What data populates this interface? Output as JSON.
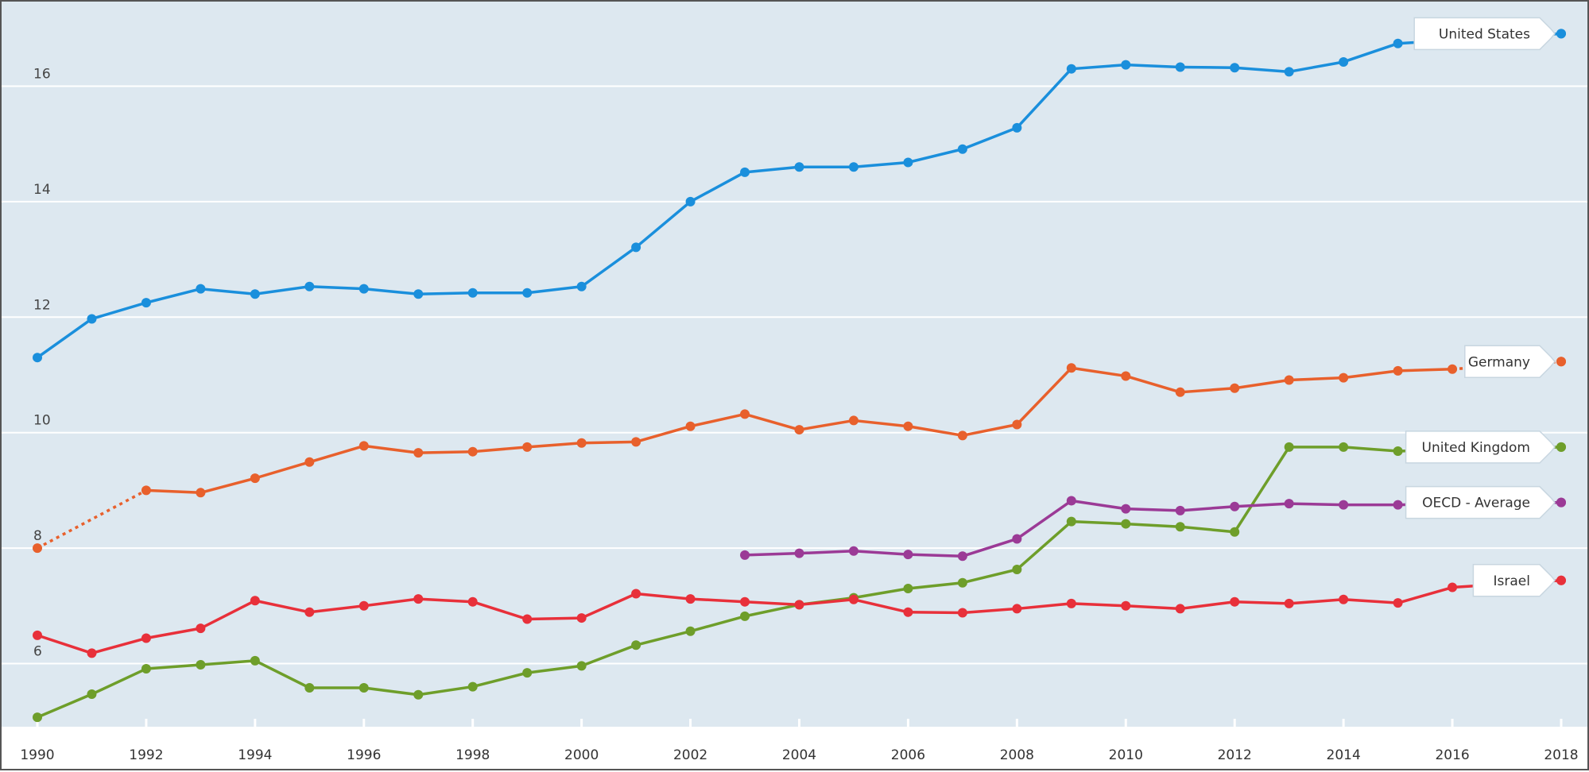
{
  "chart_data": {
    "type": "line",
    "title": "",
    "xlabel": "",
    "ylabel": "",
    "x": [
      1990,
      1991,
      1992,
      1993,
      1994,
      1995,
      1996,
      1997,
      1998,
      1999,
      2000,
      2001,
      2002,
      2003,
      2004,
      2005,
      2006,
      2007,
      2008,
      2009,
      2010,
      2011,
      2012,
      2013,
      2014,
      2015,
      2016,
      2017,
      2018
    ],
    "xticks": [
      "1990",
      "1992",
      "1994",
      "1996",
      "1998",
      "2000",
      "2002",
      "2004",
      "2006",
      "2008",
      "2010",
      "2012",
      "2014",
      "2016",
      "2018"
    ],
    "yticks": [
      "6",
      "8",
      "10",
      "12",
      "14",
      "16"
    ],
    "ylim": [
      4.9,
      17.3
    ],
    "xlim": [
      1990,
      2018
    ],
    "grid": "horizontal",
    "background": "#dde8f0",
    "legend": "labels at line ends (right)",
    "series": [
      {
        "name": "United States",
        "color": "#1a8fdc",
        "values": [
          11.3,
          11.97,
          12.25,
          12.49,
          12.4,
          12.53,
          12.49,
          12.4,
          12.42,
          12.42,
          12.53,
          13.21,
          14.0,
          14.51,
          14.6,
          14.6,
          14.68,
          14.91,
          15.28,
          16.3,
          16.37,
          16.33,
          16.32,
          16.25,
          16.42,
          16.74,
          null,
          null,
          16.91
        ]
      },
      {
        "name": "Germany",
        "color": "#e8602c",
        "dotted_gaps": true,
        "values": [
          8.0,
          null,
          9.0,
          8.96,
          9.21,
          9.49,
          9.77,
          9.65,
          9.67,
          9.75,
          9.82,
          9.84,
          10.11,
          10.32,
          10.05,
          10.21,
          10.11,
          9.95,
          10.14,
          11.12,
          10.98,
          10.7,
          10.77,
          10.91,
          10.95,
          11.07,
          11.1,
          null,
          11.23
        ]
      },
      {
        "name": "United Kingdom",
        "color": "#6e9e2a",
        "values": [
          5.07,
          5.47,
          5.91,
          5.98,
          6.05,
          5.58,
          5.58,
          5.46,
          5.6,
          5.84,
          5.96,
          6.32,
          6.56,
          6.82,
          7.02,
          7.14,
          7.3,
          7.4,
          7.63,
          8.46,
          8.42,
          8.37,
          8.28,
          9.75,
          9.75,
          9.68,
          null,
          null,
          9.75
        ]
      },
      {
        "name": "OECD - Average",
        "color": "#9b3a96",
        "values": [
          null,
          null,
          null,
          null,
          null,
          null,
          null,
          null,
          null,
          null,
          null,
          null,
          null,
          7.88,
          7.91,
          7.95,
          7.89,
          7.86,
          8.16,
          8.82,
          8.68,
          8.65,
          8.72,
          8.77,
          8.75,
          8.75,
          null,
          null,
          8.79
        ]
      },
      {
        "name": "Israel",
        "color": "#e8303a",
        "values": [
          6.49,
          6.18,
          6.44,
          6.61,
          7.09,
          6.89,
          7.0,
          7.12,
          7.07,
          6.77,
          6.79,
          7.21,
          7.12,
          7.07,
          7.02,
          7.11,
          6.89,
          6.88,
          6.95,
          7.04,
          7.0,
          6.95,
          7.07,
          7.04,
          7.11,
          7.05,
          7.32,
          null,
          7.44
        ]
      }
    ]
  }
}
